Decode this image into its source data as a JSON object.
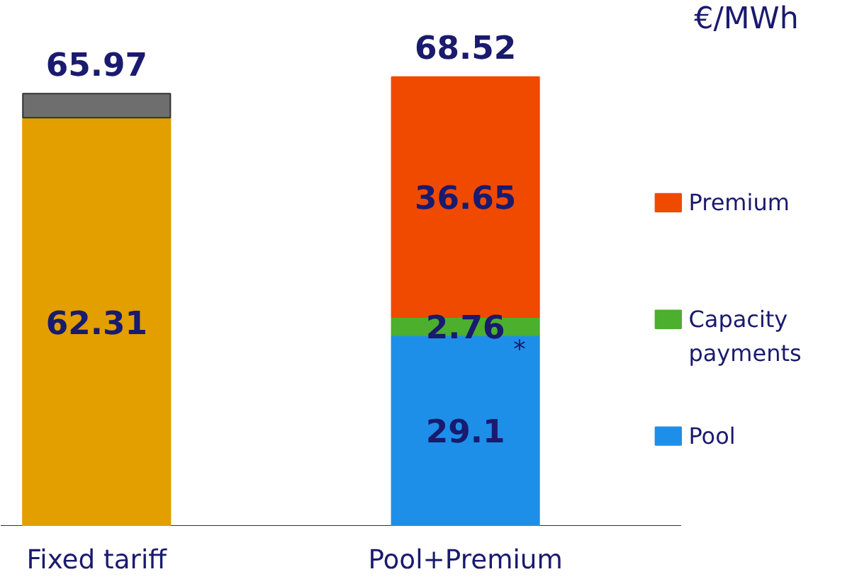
{
  "chart_data": {
    "type": "bar",
    "stacked": true,
    "categories": [
      "Fixed tariff",
      "Pool+Premium"
    ],
    "series": [
      {
        "color": "#e39e00",
        "values": [
          62.31,
          null
        ],
        "value_labels": [
          "62.31",
          null
        ]
      },
      {
        "color": "#6e6e6e",
        "values": [
          3.66,
          null
        ],
        "value_labels": [
          null,
          null
        ]
      },
      {
        "name": "Pool",
        "color": "#1e8fe8",
        "values": [
          null,
          29.1
        ],
        "value_labels": [
          null,
          "29.1"
        ]
      },
      {
        "name": "Capacity payments",
        "color": "#4caf2e",
        "values": [
          null,
          2.76
        ],
        "value_labels": [
          null,
          "2.76"
        ]
      },
      {
        "name": "Premium",
        "color": "#f04a00",
        "values": [
          null,
          36.65
        ],
        "value_labels": [
          null,
          "36.65"
        ]
      }
    ],
    "totals": [
      "65.97",
      "68.52"
    ],
    "annotations": [
      "€/MWh",
      "*"
    ],
    "legend": "right",
    "grid": false
  }
}
